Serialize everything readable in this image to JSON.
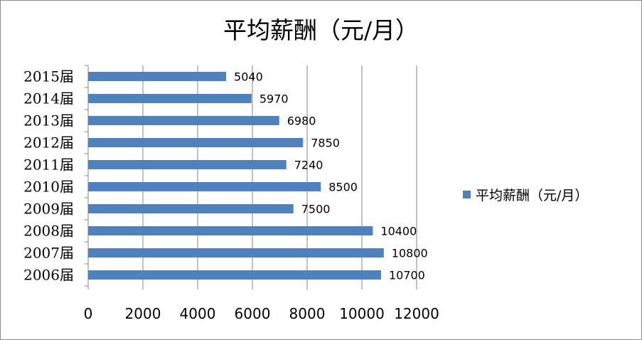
{
  "chart_data": {
    "type": "bar",
    "orientation": "horizontal",
    "title": "平均薪酬（元/月）",
    "categories": [
      "2015届",
      "2014届",
      "2013届",
      "2012届",
      "2011届",
      "2010届",
      "2009届",
      "2008届",
      "2007届",
      "2006届"
    ],
    "series": [
      {
        "name": "平均薪酬（元/月）",
        "values": [
          5040,
          5970,
          6980,
          7850,
          7240,
          8500,
          7500,
          10400,
          10800,
          10700
        ],
        "color": "#4f81bd"
      }
    ],
    "xlim": [
      0,
      12000
    ],
    "xticks": [
      0,
      2000,
      4000,
      6000,
      8000,
      10000,
      12000
    ],
    "data_labels": true,
    "grid": "vertical",
    "legend": "right"
  }
}
